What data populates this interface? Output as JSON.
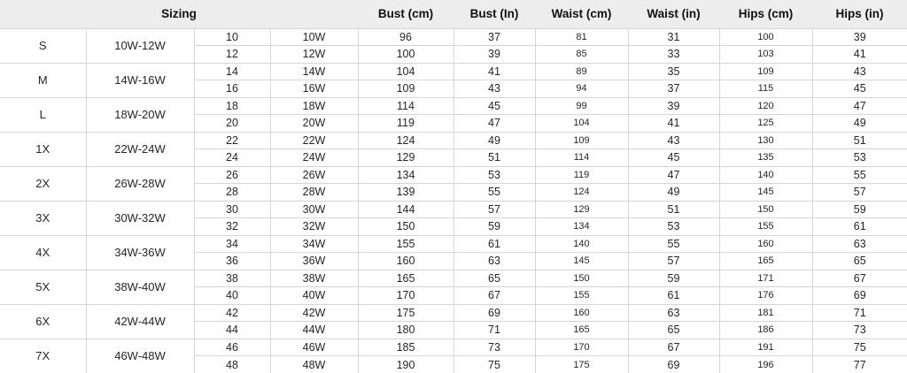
{
  "colors": {
    "header_bg": "#ededed",
    "border": "#d6d6d6",
    "text": "#262626",
    "header_text": "#111111"
  },
  "chart_data": {
    "type": "table",
    "title": "",
    "header": {
      "sizing": "Sizing",
      "measurements": [
        "Bust (cm)",
        "Bust (In)",
        "Waist (cm)",
        "Waist (in)",
        "Hips (cm)",
        "Hips (in)"
      ]
    },
    "row_columns": [
      "numeric_size",
      "w_size",
      "bust_cm",
      "bust_in",
      "waist_cm",
      "waist_in",
      "hips_cm",
      "hips_in"
    ],
    "groups": [
      {
        "size": "S",
        "range": "10W-12W",
        "rows": [
          [
            "10",
            "10W",
            96,
            37,
            81,
            31,
            100,
            39
          ],
          [
            "12",
            "12W",
            100,
            39,
            85,
            33,
            103,
            41
          ]
        ]
      },
      {
        "size": "M",
        "range": "14W-16W",
        "rows": [
          [
            "14",
            "14W",
            104,
            41,
            89,
            35,
            109,
            43
          ],
          [
            "16",
            "16W",
            109,
            43,
            94,
            37,
            115,
            45
          ]
        ]
      },
      {
        "size": "L",
        "range": "18W-20W",
        "rows": [
          [
            "18",
            "18W",
            114,
            45,
            99,
            39,
            120,
            47
          ],
          [
            "20",
            "20W",
            119,
            47,
            104,
            41,
            125,
            49
          ]
        ]
      },
      {
        "size": "1X",
        "range": "22W-24W",
        "rows": [
          [
            "22",
            "22W",
            124,
            49,
            109,
            43,
            130,
            51
          ],
          [
            "24",
            "24W",
            129,
            51,
            114,
            45,
            135,
            53
          ]
        ]
      },
      {
        "size": "2X",
        "range": "26W-28W",
        "rows": [
          [
            "26",
            "26W",
            134,
            53,
            119,
            47,
            140,
            55
          ],
          [
            "28",
            "28W",
            139,
            55,
            124,
            49,
            145,
            57
          ]
        ]
      },
      {
        "size": "3X",
        "range": "30W-32W",
        "rows": [
          [
            "30",
            "30W",
            144,
            57,
            129,
            51,
            150,
            59
          ],
          [
            "32",
            "32W",
            150,
            59,
            134,
            53,
            155,
            61
          ]
        ]
      },
      {
        "size": "4X",
        "range": "34W-36W",
        "rows": [
          [
            "34",
            "34W",
            155,
            61,
            140,
            55,
            160,
            63
          ],
          [
            "36",
            "36W",
            160,
            63,
            145,
            57,
            165,
            65
          ]
        ]
      },
      {
        "size": "5X",
        "range": "38W-40W",
        "rows": [
          [
            "38",
            "38W",
            165,
            65,
            150,
            59,
            171,
            67
          ],
          [
            "40",
            "40W",
            170,
            67,
            155,
            61,
            176,
            69
          ]
        ]
      },
      {
        "size": "6X",
        "range": "42W-44W",
        "rows": [
          [
            "42",
            "42W",
            175,
            69,
            160,
            63,
            181,
            71
          ],
          [
            "44",
            "44W",
            180,
            71,
            165,
            65,
            186,
            73
          ]
        ]
      },
      {
        "size": "7X",
        "range": "46W-48W",
        "rows": [
          [
            "46",
            "46W",
            185,
            73,
            170,
            67,
            191,
            75
          ],
          [
            "48",
            "48W",
            190,
            75,
            175,
            69,
            196,
            77
          ]
        ]
      }
    ]
  }
}
